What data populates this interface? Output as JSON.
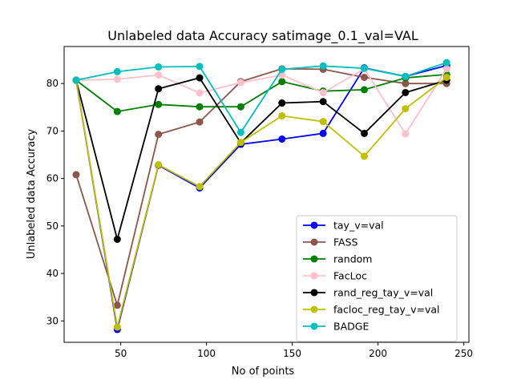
{
  "chart_data": {
    "type": "line",
    "title": "Unlabeled data Accuracy satimage_0.1_val=VAL",
    "xlabel": "No of points",
    "ylabel": "Unlabeled data Accuracy",
    "xlim": [
      17,
      253
    ],
    "ylim": [
      25.5,
      87.8
    ],
    "xticks": [
      50,
      100,
      150,
      200,
      250
    ],
    "yticks": [
      30,
      40,
      50,
      60,
      70,
      80
    ],
    "grid": false,
    "legend_position": "lower-right",
    "x": [
      24,
      48,
      72,
      96,
      120,
      144,
      168,
      192,
      216,
      240
    ],
    "series": [
      {
        "name": "tay_v=val",
        "color": "#0000ff",
        "values": [
          80.7,
          28.2,
          62.8,
          58.0,
          67.2,
          68.3,
          69.5,
          83.3,
          81.5,
          83.8
        ]
      },
      {
        "name": "FASS",
        "color": "#8c564b",
        "values": [
          60.8,
          33.3,
          69.3,
          71.9,
          80.4,
          83.1,
          83.0,
          81.3,
          80.0,
          80.0
        ]
      },
      {
        "name": "random",
        "color": "#008000",
        "values": [
          80.7,
          74.1,
          75.6,
          75.1,
          75.1,
          80.4,
          78.4,
          78.7,
          81.2,
          81.9
        ]
      },
      {
        "name": "FacLoc",
        "color": "#ffc0cb",
        "values": [
          80.7,
          80.9,
          81.8,
          78.0,
          80.2,
          81.8,
          78.1,
          83.1,
          69.4,
          83.1
        ]
      },
      {
        "name": "rand_reg_tay_v=val",
        "color": "#000000",
        "values": [
          80.7,
          47.2,
          78.9,
          81.2,
          67.5,
          75.9,
          76.2,
          69.5,
          78.1,
          80.7
        ]
      },
      {
        "name": "facloc_reg_tay_v=val",
        "color": "#bfbf00",
        "values": [
          80.7,
          28.7,
          62.9,
          58.3,
          67.6,
          73.2,
          72.0,
          64.7,
          74.7,
          81.3
        ]
      },
      {
        "name": "BADGE",
        "color": "#00bfbf",
        "values": [
          80.7,
          82.5,
          83.5,
          83.6,
          69.7,
          83.0,
          83.7,
          83.2,
          81.5,
          84.4
        ]
      }
    ]
  }
}
